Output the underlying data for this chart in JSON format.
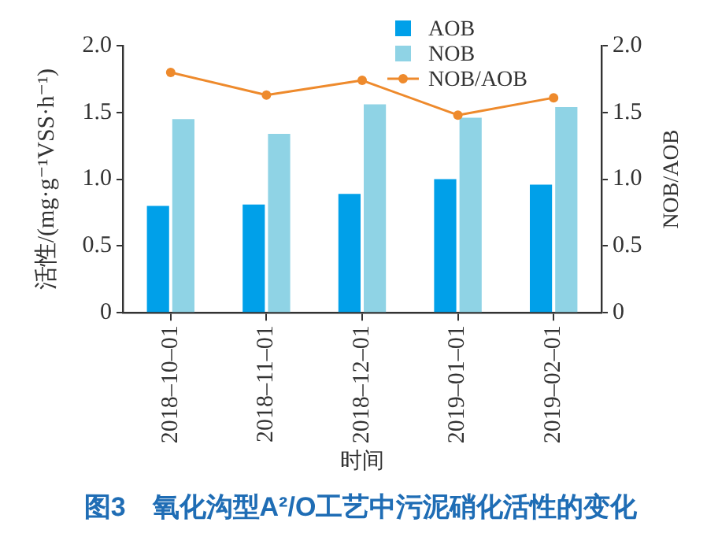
{
  "chart_data": {
    "type": "bar",
    "title": "图3　氧化沟型A²/O工艺中污泥硝化活性的变化",
    "xlabel": "时间",
    "ylabel": "活性/(mg·g⁻¹VSS·h⁻¹)",
    "y2label": "NOB/AOB",
    "categories": [
      "2018–10–01",
      "2018–11–01",
      "2018–12–01",
      "2019–01–01",
      "2019–02–01"
    ],
    "series": [
      {
        "name": "AOB",
        "color": "#00a0e9",
        "values": [
          0.8,
          0.81,
          0.89,
          1.0,
          0.96
        ]
      },
      {
        "name": "NOB",
        "color": "#8fd3e5",
        "values": [
          1.45,
          1.34,
          1.56,
          1.46,
          1.54
        ]
      },
      {
        "name": "NOB/AOB",
        "type": "line",
        "axis": "y2",
        "color": "#ee8a2c",
        "values": [
          1.8,
          1.63,
          1.74,
          1.48,
          1.61
        ]
      }
    ],
    "ylim": [
      0,
      2
    ],
    "yticks": [
      0,
      0.5,
      {
        "value": 1,
        "label": "1.0"
      },
      1.5,
      {
        "value": 2,
        "label": "2.0"
      }
    ],
    "y2lim": [
      0,
      2
    ],
    "y2ticks": [
      0,
      0.5,
      {
        "value": 1,
        "label": "1.0"
      },
      1.5,
      {
        "value": 2,
        "label": "2.0"
      }
    ],
    "grid": false,
    "legend": "top right",
    "marker": "circle"
  }
}
